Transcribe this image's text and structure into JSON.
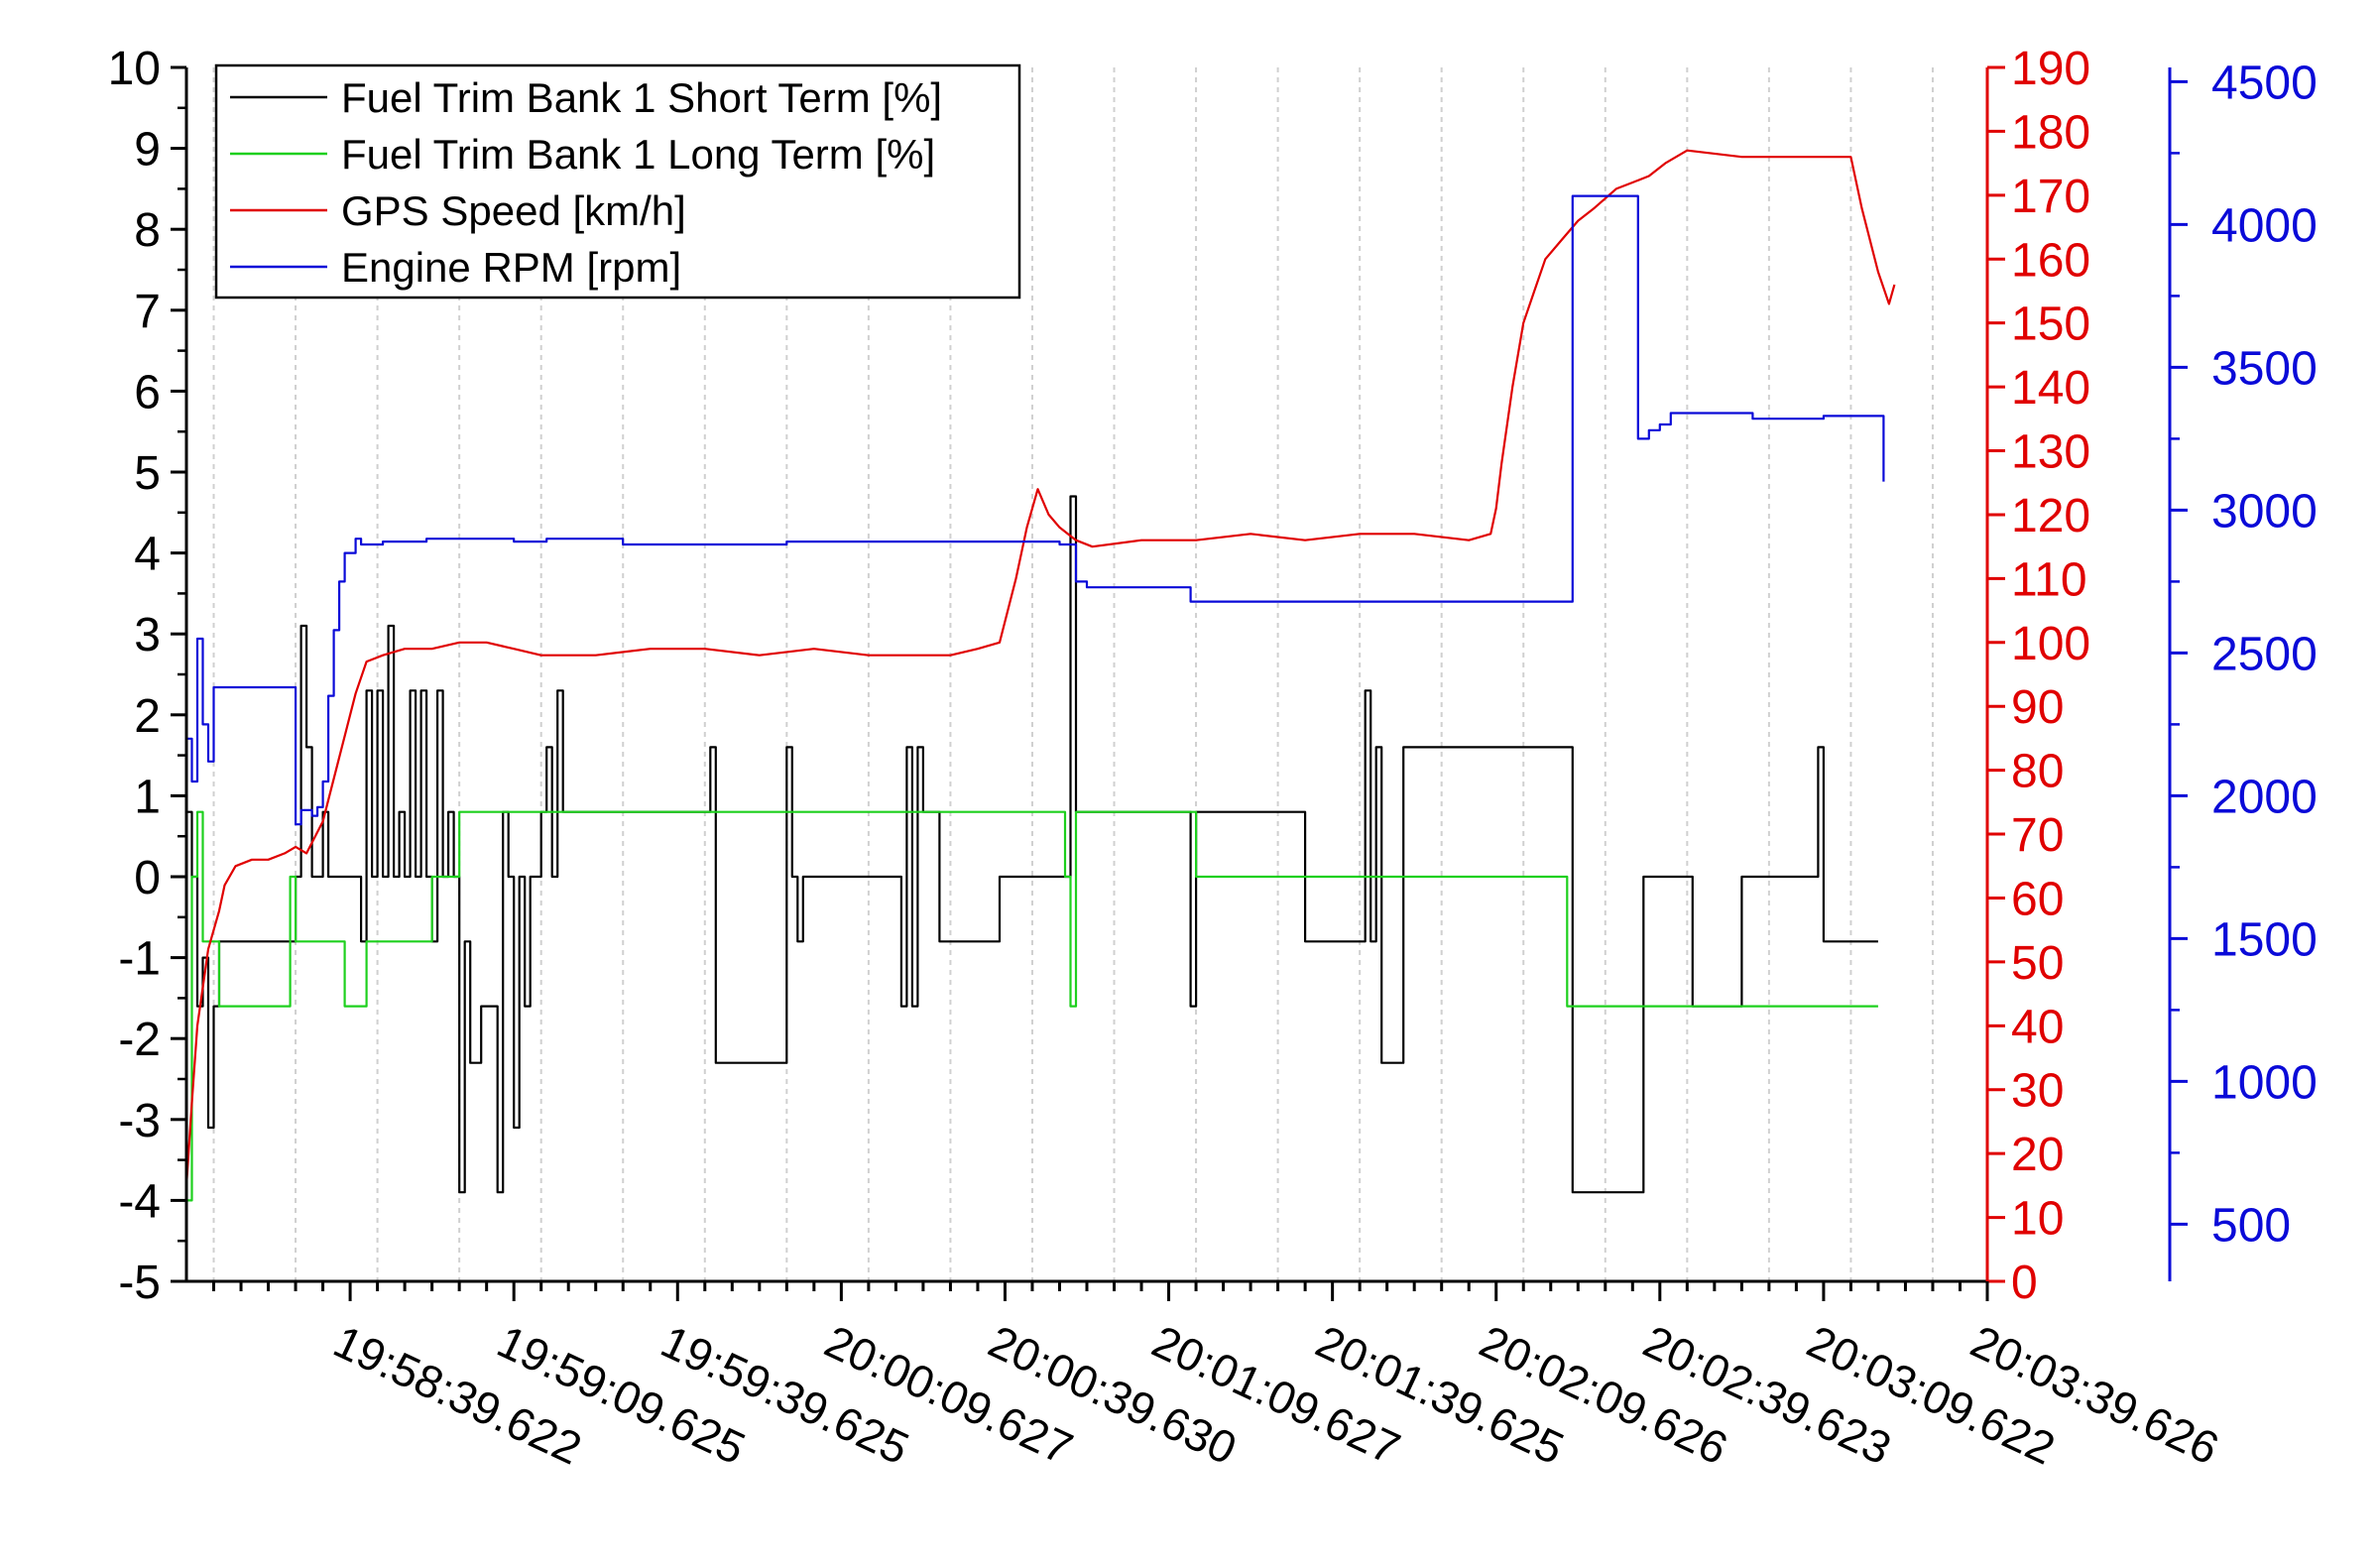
{
  "chart_data": {
    "type": "line",
    "title": "",
    "xlabel": "",
    "x_tick_labels": [
      "19:58:39.622",
      "19:59:09.625",
      "19:59:39.625",
      "20:00:09.627",
      "20:00:39.630",
      "20:01:09.627",
      "20:01:39.625",
      "20:02:09.626",
      "20:02:39.623",
      "20:03:09.622",
      "20:03:39.626"
    ],
    "x_tick_seconds": [
      30,
      60,
      90,
      120,
      150,
      180,
      210,
      240,
      270,
      300,
      330
    ],
    "xlim": [
      0,
      330
    ],
    "grid": "vertical",
    "legend_position": "top-left",
    "colors": {
      "black": "#000000",
      "green": "#1ed01e",
      "red": "#e00000",
      "blue": "#0a0ad8"
    },
    "axes": {
      "left": {
        "ylim": [
          -5,
          10
        ],
        "ticks": [
          -5,
          -4,
          -3,
          -2,
          -1,
          0,
          1,
          2,
          3,
          4,
          5,
          6,
          7,
          8,
          9,
          10
        ],
        "color": "#000000"
      },
      "right1": {
        "ylim": [
          0,
          190
        ],
        "ticks": [
          0,
          10,
          20,
          30,
          40,
          50,
          60,
          70,
          80,
          90,
          100,
          110,
          120,
          130,
          140,
          150,
          160,
          170,
          180,
          190
        ],
        "color": "#e00000"
      },
      "right2": {
        "ylim": [
          300,
          4550
        ],
        "ticks": [
          500,
          1000,
          1500,
          2000,
          2500,
          3000,
          3500,
          4000,
          4500
        ],
        "color": "#0a0ad8"
      }
    },
    "series": [
      {
        "name": "Fuel Trim Bank 1 Short Term [%]",
        "color": "#000000",
        "axis": "left",
        "step": true,
        "points": [
          [
            0,
            0.8
          ],
          [
            1,
            0
          ],
          [
            2,
            -1.6
          ],
          [
            3,
            -1
          ],
          [
            4,
            -3.1
          ],
          [
            5,
            -1.6
          ],
          [
            6,
            -0.8
          ],
          [
            19,
            -0.8
          ],
          [
            20,
            0
          ],
          [
            21,
            3.1
          ],
          [
            22,
            1.6
          ],
          [
            23,
            0
          ],
          [
            25,
            0.8
          ],
          [
            26,
            0
          ],
          [
            27,
            0
          ],
          [
            31,
            0
          ],
          [
            32,
            -0.8
          ],
          [
            33,
            2.3
          ],
          [
            34,
            0
          ],
          [
            35,
            2.3
          ],
          [
            36,
            0
          ],
          [
            37,
            3.1
          ],
          [
            38,
            0
          ],
          [
            39,
            0.8
          ],
          [
            40,
            0
          ],
          [
            41,
            2.3
          ],
          [
            42,
            0
          ],
          [
            43,
            2.3
          ],
          [
            44,
            0
          ],
          [
            45,
            -0.8
          ],
          [
            46,
            2.3
          ],
          [
            47,
            0
          ],
          [
            48,
            0.8
          ],
          [
            49,
            0
          ],
          [
            50,
            -3.9
          ],
          [
            51,
            -0.8
          ],
          [
            52,
            -2.3
          ],
          [
            54,
            -1.6
          ],
          [
            57,
            -3.9
          ],
          [
            58,
            0.8
          ],
          [
            59,
            0
          ],
          [
            60,
            -3.1
          ],
          [
            61,
            0
          ],
          [
            62,
            -1.6
          ],
          [
            63,
            0
          ],
          [
            64,
            0
          ],
          [
            65,
            0.8
          ],
          [
            66,
            1.6
          ],
          [
            67,
            0
          ],
          [
            68,
            2.3
          ],
          [
            69,
            0.8
          ],
          [
            95,
            0.8
          ],
          [
            96,
            1.6
          ],
          [
            97,
            -2.3
          ],
          [
            109,
            -2.3
          ],
          [
            110,
            1.6
          ],
          [
            111,
            0
          ],
          [
            112,
            -0.8
          ],
          [
            113,
            0
          ],
          [
            130,
            0
          ],
          [
            131,
            -1.6
          ],
          [
            132,
            1.6
          ],
          [
            133,
            -1.6
          ],
          [
            134,
            1.6
          ],
          [
            135,
            0.8
          ],
          [
            137,
            0.8
          ],
          [
            138,
            -0.8
          ],
          [
            148,
            -0.8
          ],
          [
            149,
            0
          ],
          [
            161,
            0
          ],
          [
            162,
            4.7
          ],
          [
            163,
            0.8
          ],
          [
            183,
            0.8
          ],
          [
            184,
            -1.6
          ],
          [
            185,
            0.8
          ],
          [
            204,
            0.8
          ],
          [
            205,
            -0.8
          ],
          [
            215,
            -0.8
          ],
          [
            216,
            2.3
          ],
          [
            217,
            -0.8
          ],
          [
            218,
            1.6
          ],
          [
            219,
            -2.3
          ],
          [
            222,
            -2.3
          ],
          [
            223,
            1.6
          ],
          [
            253,
            1.6
          ],
          [
            254,
            -3.9
          ],
          [
            266,
            -3.9
          ],
          [
            267,
            0
          ],
          [
            275,
            0
          ],
          [
            276,
            -1.6
          ],
          [
            284,
            -1.6
          ],
          [
            285,
            0
          ],
          [
            298,
            0
          ],
          [
            299,
            1.6
          ],
          [
            300,
            -0.8
          ],
          [
            310,
            -0.8
          ]
        ]
      },
      {
        "name": "Fuel Trim Bank 1 Long Term [%]",
        "color": "#1ed01e",
        "axis": "left",
        "step": true,
        "points": [
          [
            0,
            -4
          ],
          [
            1,
            0
          ],
          [
            2,
            0.8
          ],
          [
            3,
            -0.8
          ],
          [
            5,
            -0.8
          ],
          [
            6,
            -1.6
          ],
          [
            18,
            -1.6
          ],
          [
            19,
            0
          ],
          [
            20,
            -0.8
          ],
          [
            28,
            -0.8
          ],
          [
            29,
            -1.6
          ],
          [
            32,
            -1.6
          ],
          [
            33,
            -0.8
          ],
          [
            44,
            -0.8
          ],
          [
            45,
            0
          ],
          [
            49,
            0
          ],
          [
            50,
            0.8
          ],
          [
            160,
            0.8
          ],
          [
            161,
            0
          ],
          [
            162,
            -1.6
          ],
          [
            163,
            0.8
          ],
          [
            184,
            0.8
          ],
          [
            185,
            0
          ],
          [
            252,
            0
          ],
          [
            253,
            -1.6
          ],
          [
            310,
            -1.6
          ]
        ]
      },
      {
        "name": "GPS Speed [km/h]",
        "color": "#e00000",
        "axis": "right1",
        "step": false,
        "points": [
          [
            0,
            15
          ],
          [
            1,
            28
          ],
          [
            2,
            40
          ],
          [
            4,
            52
          ],
          [
            6,
            58
          ],
          [
            7,
            62
          ],
          [
            9,
            65
          ],
          [
            12,
            66
          ],
          [
            15,
            66
          ],
          [
            18,
            67
          ],
          [
            20,
            68
          ],
          [
            22,
            67
          ],
          [
            25,
            72
          ],
          [
            28,
            82
          ],
          [
            31,
            92
          ],
          [
            33,
            97
          ],
          [
            36,
            98
          ],
          [
            40,
            99
          ],
          [
            45,
            99
          ],
          [
            50,
            100
          ],
          [
            55,
            100
          ],
          [
            60,
            99
          ],
          [
            65,
            98
          ],
          [
            75,
            98
          ],
          [
            85,
            99
          ],
          [
            95,
            99
          ],
          [
            105,
            98
          ],
          [
            115,
            99
          ],
          [
            125,
            98
          ],
          [
            135,
            98
          ],
          [
            140,
            98
          ],
          [
            145,
            99
          ],
          [
            149,
            100
          ],
          [
            152,
            110
          ],
          [
            154,
            118
          ],
          [
            156,
            124
          ],
          [
            158,
            120
          ],
          [
            160,
            118
          ],
          [
            163,
            116
          ],
          [
            166,
            115
          ],
          [
            175,
            116
          ],
          [
            185,
            116
          ],
          [
            195,
            117
          ],
          [
            205,
            116
          ],
          [
            215,
            117
          ],
          [
            225,
            117
          ],
          [
            235,
            116
          ],
          [
            239,
            117
          ],
          [
            240,
            121
          ],
          [
            241,
            128
          ],
          [
            243,
            140
          ],
          [
            245,
            150
          ],
          [
            247,
            155
          ],
          [
            249,
            160
          ],
          [
            252,
            163
          ],
          [
            255,
            166
          ],
          [
            258,
            168
          ],
          [
            262,
            171
          ],
          [
            265,
            172
          ],
          [
            268,
            173
          ],
          [
            271,
            175
          ],
          [
            275,
            177
          ],
          [
            285,
            176
          ],
          [
            295,
            176
          ],
          [
            305,
            176
          ],
          [
            307,
            168
          ],
          [
            310,
            158
          ],
          [
            312,
            153
          ],
          [
            313,
            156
          ]
        ]
      },
      {
        "name": "Engine RPM [rpm]",
        "color": "#0a0ad8",
        "axis": "right2",
        "step": true,
        "points": [
          [
            0,
            2200
          ],
          [
            1,
            2050
          ],
          [
            2,
            2550
          ],
          [
            3,
            2250
          ],
          [
            4,
            2120
          ],
          [
            5,
            2380
          ],
          [
            19,
            2380
          ],
          [
            20,
            1900
          ],
          [
            21,
            1950
          ],
          [
            23,
            1930
          ],
          [
            24,
            1960
          ],
          [
            25,
            2050
          ],
          [
            26,
            2350
          ],
          [
            27,
            2580
          ],
          [
            28,
            2750
          ],
          [
            29,
            2850
          ],
          [
            31,
            2900
          ],
          [
            32,
            2880
          ],
          [
            36,
            2890
          ],
          [
            44,
            2900
          ],
          [
            50,
            2900
          ],
          [
            60,
            2890
          ],
          [
            66,
            2900
          ],
          [
            80,
            2880
          ],
          [
            95,
            2880
          ],
          [
            110,
            2890
          ],
          [
            125,
            2890
          ],
          [
            140,
            2890
          ],
          [
            150,
            2890
          ],
          [
            159,
            2890
          ],
          [
            160,
            2880
          ],
          [
            163,
            2750
          ],
          [
            165,
            2730
          ],
          [
            183,
            2730
          ],
          [
            184,
            2680
          ],
          [
            253,
            2680
          ],
          [
            254,
            4100
          ],
          [
            265,
            4100
          ],
          [
            266,
            3250
          ],
          [
            268,
            3280
          ],
          [
            270,
            3300
          ],
          [
            272,
            3340
          ],
          [
            285,
            3340
          ],
          [
            287,
            3320
          ],
          [
            300,
            3330
          ],
          [
            310,
            3330
          ],
          [
            311,
            3100
          ]
        ]
      }
    ]
  }
}
